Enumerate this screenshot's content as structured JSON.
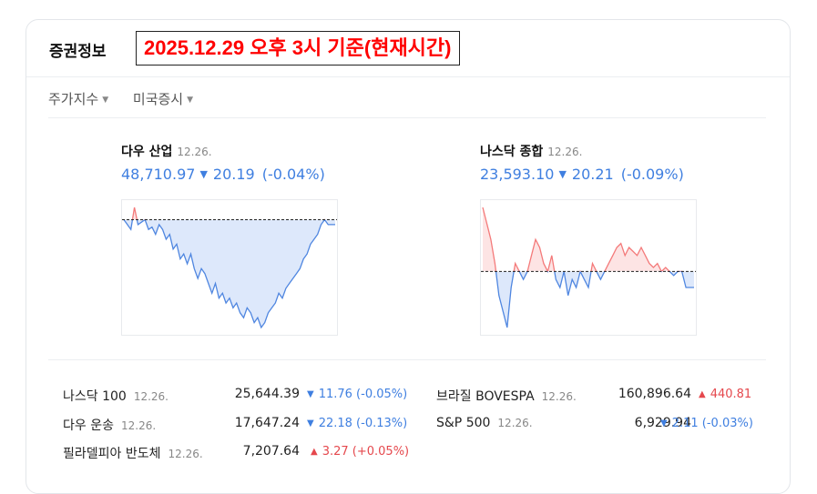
{
  "header": {
    "title": "증권정보",
    "banner": "2025.12.29 오후 3시 기준(현재시간)"
  },
  "tabs": [
    {
      "label": "주가지수"
    },
    {
      "label": "미국증시"
    }
  ],
  "indices": [
    {
      "name": "다우 산업",
      "date": "12.26.",
      "value": "48,710.97",
      "direction": "down",
      "change": "20.19",
      "percent": "(-0.04%)",
      "chart_data": {
        "type": "line",
        "baseline": 0,
        "values": [
          0,
          -1,
          -2,
          2.5,
          -1,
          -0.5,
          0,
          -2,
          -1.5,
          -3,
          -1,
          -2,
          -4,
          -3,
          -6,
          -5,
          -8,
          -7,
          -9,
          -7,
          -10,
          -12,
          -10,
          -11,
          -13,
          -15,
          -13,
          -16,
          -15,
          -17,
          -16,
          -18,
          -17,
          -19,
          -20,
          -18,
          -19,
          -21,
          -20,
          -22,
          -21,
          -19,
          -18,
          -17,
          -15,
          -16,
          -14,
          -13,
          -12,
          -11,
          -10,
          -8,
          -7,
          -5,
          -4,
          -3,
          -1,
          0,
          -1,
          -1,
          -1
        ],
        "colors": {
          "above": "#f47a7a",
          "below": "#4f86e0",
          "fill_above": "#fde4e4",
          "fill_below": "#dde8fb"
        }
      }
    },
    {
      "name": "나스닥 종합",
      "date": "12.26.",
      "value": "23,593.10",
      "direction": "down",
      "change": "20.21",
      "percent": "(-0.09%)",
      "chart_data": {
        "type": "line",
        "baseline": 0,
        "values": [
          8,
          6,
          4,
          1,
          -3,
          -5,
          -7,
          -2,
          1,
          0,
          -1,
          0,
          2,
          4,
          3,
          1,
          0,
          2,
          -1,
          -2,
          0,
          -3,
          -1,
          -2,
          0,
          -1,
          -2,
          1,
          0,
          -1,
          0,
          1,
          2,
          3,
          3.5,
          2,
          3,
          2.5,
          2,
          3,
          2,
          1,
          0.5,
          1,
          0,
          0.5,
          0,
          -0.5,
          0,
          0,
          -2,
          -2,
          -2
        ],
        "colors": {
          "above": "#f47a7a",
          "below": "#4f86e0",
          "fill_above": "#fde4e4",
          "fill_below": "#dde8fb"
        }
      }
    }
  ],
  "quotes_left": [
    {
      "name": "나스닥 100",
      "date": "12.26.",
      "value": "25,644.39",
      "direction": "down",
      "change": "11.76 (-0.05%)"
    },
    {
      "name": "다우 운송",
      "date": "12.26.",
      "value": "17,647.24",
      "direction": "down",
      "change": "22.18 (-0.13%)"
    },
    {
      "name": "필라델피아 반도체",
      "date": "12.26.",
      "value": "7,207.64",
      "direction": "up",
      "change": "3.27 (+0.05%)"
    }
  ],
  "quotes_right": [
    {
      "name": "브라질 BOVESPA",
      "date": "12.26.",
      "value": "160,896.64",
      "direction": "up",
      "change": "440.81"
    },
    {
      "name": "S&P 500",
      "date": "12.26.",
      "value": "6,929.94",
      "direction": "down",
      "change": "2.11 (-0.03%)"
    }
  ]
}
